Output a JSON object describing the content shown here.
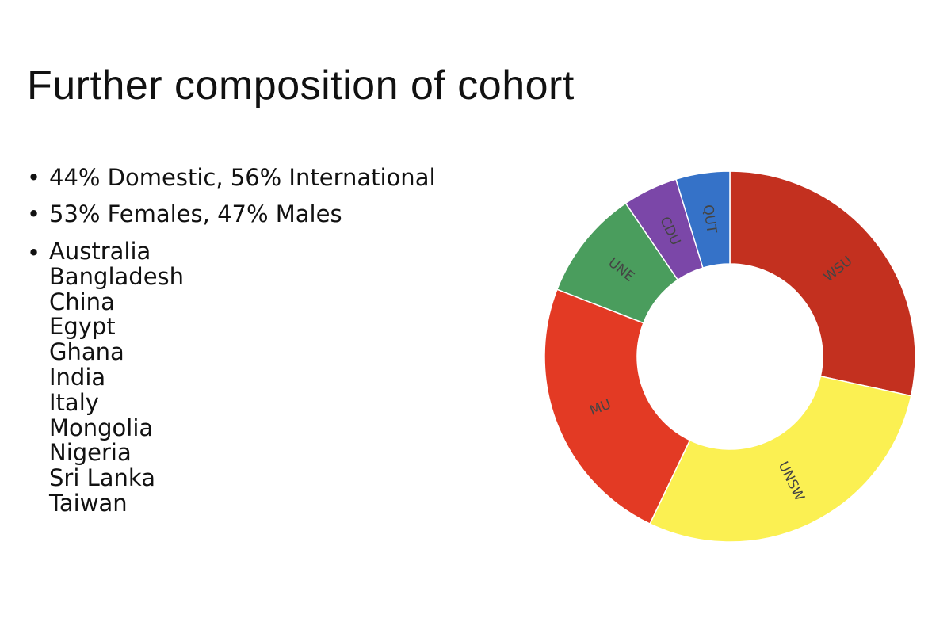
{
  "title": "Further composition of cohort",
  "bullets": [
    "44% Domestic, 56% International",
    "53% Females, 47% Males"
  ],
  "countries": [
    "Australia",
    "Bangladesh",
    "China",
    "Egypt",
    "Ghana",
    "India",
    "Italy",
    "Mongolia",
    "Nigeria",
    "Sri Lanka",
    "Taiwan"
  ],
  "chart_data": {
    "type": "donut",
    "categories": [
      "WSU",
      "UNSW",
      "MU",
      "UNE",
      "CDU",
      "QUT"
    ],
    "values": [
      28.4,
      28.7,
      23.8,
      9.6,
      4.8,
      4.7
    ],
    "colors": [
      "#c3301f",
      "#fbf052",
      "#e33a24",
      "#4a9d5d",
      "#7b47a8",
      "#3572c8"
    ]
  }
}
